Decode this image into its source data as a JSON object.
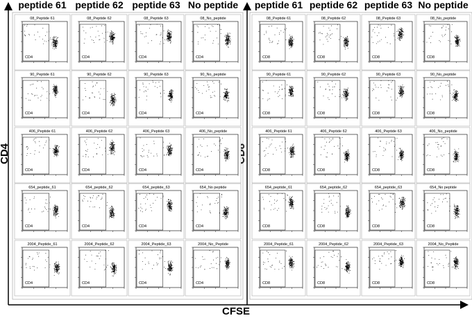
{
  "x_axis_label": "CFSE",
  "left": {
    "axis_label": "CD4",
    "gate_label": "CD4",
    "columns": [
      "peptide 61",
      "peptide 62",
      "peptide 63",
      "No peptide"
    ],
    "rows": [
      [
        "08_Peptide 61",
        "08_Peptide 62",
        "08_Peptide 63",
        "08_No_peptide"
      ],
      [
        "90_Peptide 61",
        "90_Peptide 62",
        "90_Peptide 63",
        "90_No_peptide"
      ],
      [
        "406_Peptide 61",
        "406_Peptide 62",
        "406_Peptide 63",
        "406_No_peptide"
      ],
      [
        "654_peptide_61",
        "654_peptide_62",
        "654_peptide_63",
        "654_No peptide"
      ],
      [
        "2004_Peptide_61",
        "2004_Peptide_62",
        "2004_Peptide_63",
        "2004_No_Peptide"
      ]
    ]
  },
  "right": {
    "axis_label": "CD8",
    "gate_label": "CD8",
    "columns": [
      "peptide 61",
      "peptide 62",
      "peptide 63",
      "No peptide"
    ],
    "rows": [
      [
        "08_Peptide 61",
        "08_Peptide 62",
        "08_Peptide 63",
        "08_No_peptide"
      ],
      [
        "90_Peptide 61",
        "90_Peptide 62",
        "90_Peptide 63",
        "90_No_peptide"
      ],
      [
        "406_Peptide 61",
        "406_Peptide 62",
        "406_Peptide 63",
        "406_No_peptide"
      ],
      [
        "654_peptide_61",
        "654_peptide_62",
        "654_peptide_63",
        "654_No peptide"
      ],
      [
        "2004_Peptide_61",
        "2004_Peptide_62",
        "2004_Peptide_63",
        "2004_No_Peptide"
      ]
    ]
  }
}
